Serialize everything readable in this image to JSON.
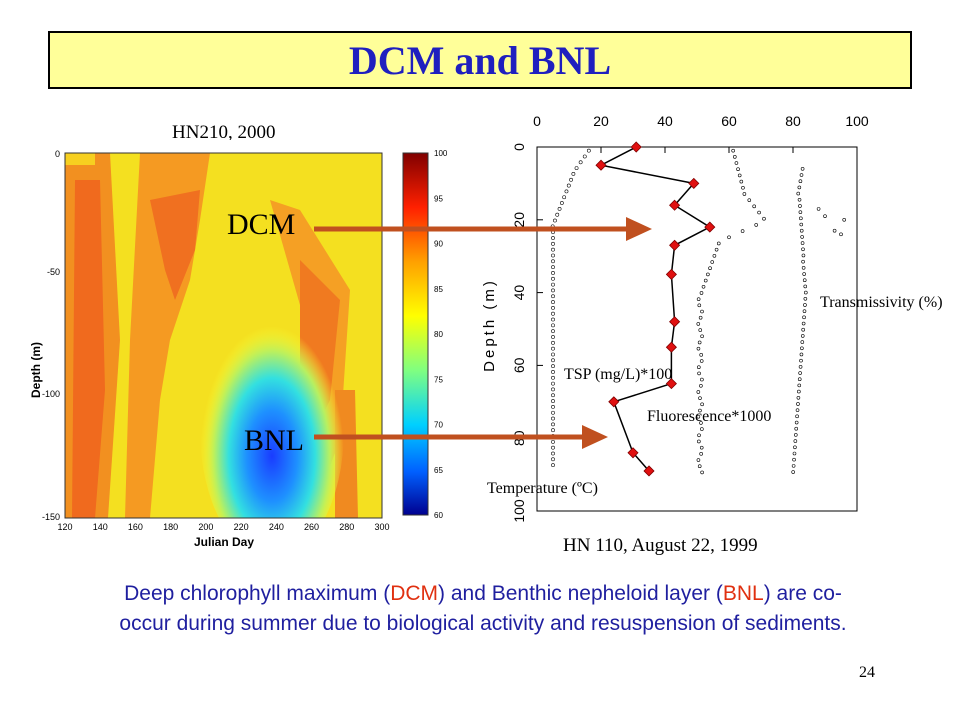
{
  "title": "DCM and BNL",
  "left_plot": {
    "heading": "HN210, 2000",
    "ylabel": "Depth (m)",
    "xlabel": "Julian Day",
    "yticks": [
      "0",
      "-50",
      "-100",
      "-150"
    ],
    "xticks": [
      "120",
      "140",
      "160",
      "180",
      "200",
      "220",
      "240",
      "260",
      "280",
      "300"
    ],
    "colorbar_ticks": [
      "100",
      "95",
      "90",
      "85",
      "80",
      "75",
      "70",
      "65",
      "60"
    ],
    "dcm_label": "DCM",
    "bnl_label": "BNL"
  },
  "right_plot": {
    "footer": "HN 110, August 22, 1999",
    "ylabel": "Depth (m)",
    "xticks": [
      "0",
      "20",
      "40",
      "60",
      "80",
      "100"
    ],
    "yticks": [
      "0",
      "20",
      "40",
      "60",
      "80",
      "100"
    ],
    "labels": {
      "transmissivity": "Transmissivity (%)",
      "tsp": "TSP (mg/L)*100",
      "fluorescence": "Fluorescence*1000",
      "temperature": "Temperature (ºC)"
    }
  },
  "chart_data": [
    {
      "type": "heatmap",
      "title": "HN210, 2000",
      "xlabel": "Julian Day",
      "ylabel": "Depth (m)",
      "xlim": [
        120,
        300
      ],
      "ylim": [
        -150,
        0
      ],
      "colorbar_range": [
        60,
        100
      ]
    },
    {
      "type": "line",
      "title": "HN 110, August 22, 1999",
      "ylabel": "Depth (m)",
      "xlim": [
        0,
        100
      ],
      "ylim": [
        100,
        0
      ],
      "series": [
        {
          "name": "TSP (mg/L)*100",
          "x": [
            31,
            20,
            49,
            43,
            54,
            43,
            42,
            43,
            42,
            42,
            24,
            30,
            35
          ],
          "y": [
            0,
            5,
            10,
            16,
            22,
            27,
            35,
            48,
            55,
            65,
            70,
            84,
            89
          ]
        }
      ]
    }
  ],
  "caption": {
    "p1": "Deep chlorophyll maximum (",
    "dcm": "DCM",
    "p2": ") and Benthic nepheloid layer (",
    "bnl": "BNL",
    "p3": ") are co-",
    "line2": "occur during summer due to biological activity and resuspension of sediments."
  },
  "page_number": "24",
  "colors": {
    "title_bg": "#ffff99",
    "title_text": "#1f1fbf",
    "arrow": "#c0501f",
    "marker": "#e01010",
    "caption_text": "#1f1f9f",
    "caption_highlight": "#e03010"
  }
}
